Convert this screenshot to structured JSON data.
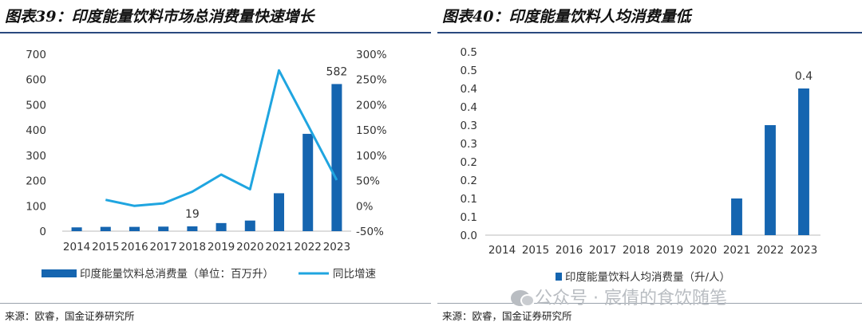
{
  "left": {
    "title": "图表39：印度能量饮料市场总消费量快速增长",
    "source": "来源：欧睿，国金证券研究所",
    "chart_data": {
      "type": "bar+line",
      "categories": [
        "2014",
        "2015",
        "2016",
        "2017",
        "2018",
        "2019",
        "2020",
        "2021",
        "2022",
        "2023"
      ],
      "series": [
        {
          "name": "印度能量饮料总消费量（单位：百万升）",
          "type": "bar",
          "axis": "left",
          "color": "#1565b0",
          "values": [
            15,
            17,
            17,
            18,
            19,
            32,
            42,
            150,
            385,
            582
          ]
        },
        {
          "name": "同比增速",
          "type": "line",
          "axis": "right",
          "color": "#1fa5e0",
          "values": [
            null,
            0.12,
            0.0,
            0.05,
            0.28,
            0.62,
            0.33,
            2.68,
            1.6,
            0.51
          ]
        }
      ],
      "ylim_left": [
        0,
        700
      ],
      "yticks_left": [
        0,
        100,
        200,
        300,
        400,
        500,
        600,
        700
      ],
      "ylim_right": [
        -0.5,
        3.0
      ],
      "yticks_right_labels": [
        "-50%",
        "0%",
        "50%",
        "100%",
        "150%",
        "200%",
        "250%",
        "300%"
      ],
      "yticks_right_values": [
        -0.5,
        0,
        0.5,
        1.0,
        1.5,
        2.0,
        2.5,
        3.0
      ],
      "data_labels": [
        {
          "index": 4,
          "text": "19"
        },
        {
          "index": 9,
          "text": "582"
        }
      ],
      "legend": "bottom",
      "grid": false
    }
  },
  "right": {
    "title": "图表40：印度能量饮料人均消费量低",
    "source": "来源：欧睿，国金证券研究所",
    "chart_data": {
      "type": "bar",
      "categories": [
        "2014",
        "2015",
        "2016",
        "2017",
        "2018",
        "2019",
        "2020",
        "2021",
        "2022",
        "2023"
      ],
      "series": [
        {
          "name": "印度能量饮料人均消费量（升/人）",
          "type": "bar",
          "color": "#1565b0",
          "values": [
            0,
            0,
            0,
            0,
            0,
            0,
            0,
            0.1,
            0.3,
            0.4
          ]
        }
      ],
      "ylim": [
        0,
        0.5
      ],
      "yticks_values": [
        0,
        0.05,
        0.1,
        0.15,
        0.2,
        0.25,
        0.3,
        0.35,
        0.4,
        0.45,
        0.5
      ],
      "yticks_labels": [
        "0.0",
        "0.1",
        "0.1",
        "0.2",
        "0.2",
        "0.3",
        "0.3",
        "0.4",
        "0.4",
        "0.5",
        "0.5"
      ],
      "data_labels": [
        {
          "index": 9,
          "text": "0.4"
        }
      ],
      "legend": "bottom",
      "grid": false
    }
  },
  "watermark": "公众号 · 宸倩的食饮随笔"
}
